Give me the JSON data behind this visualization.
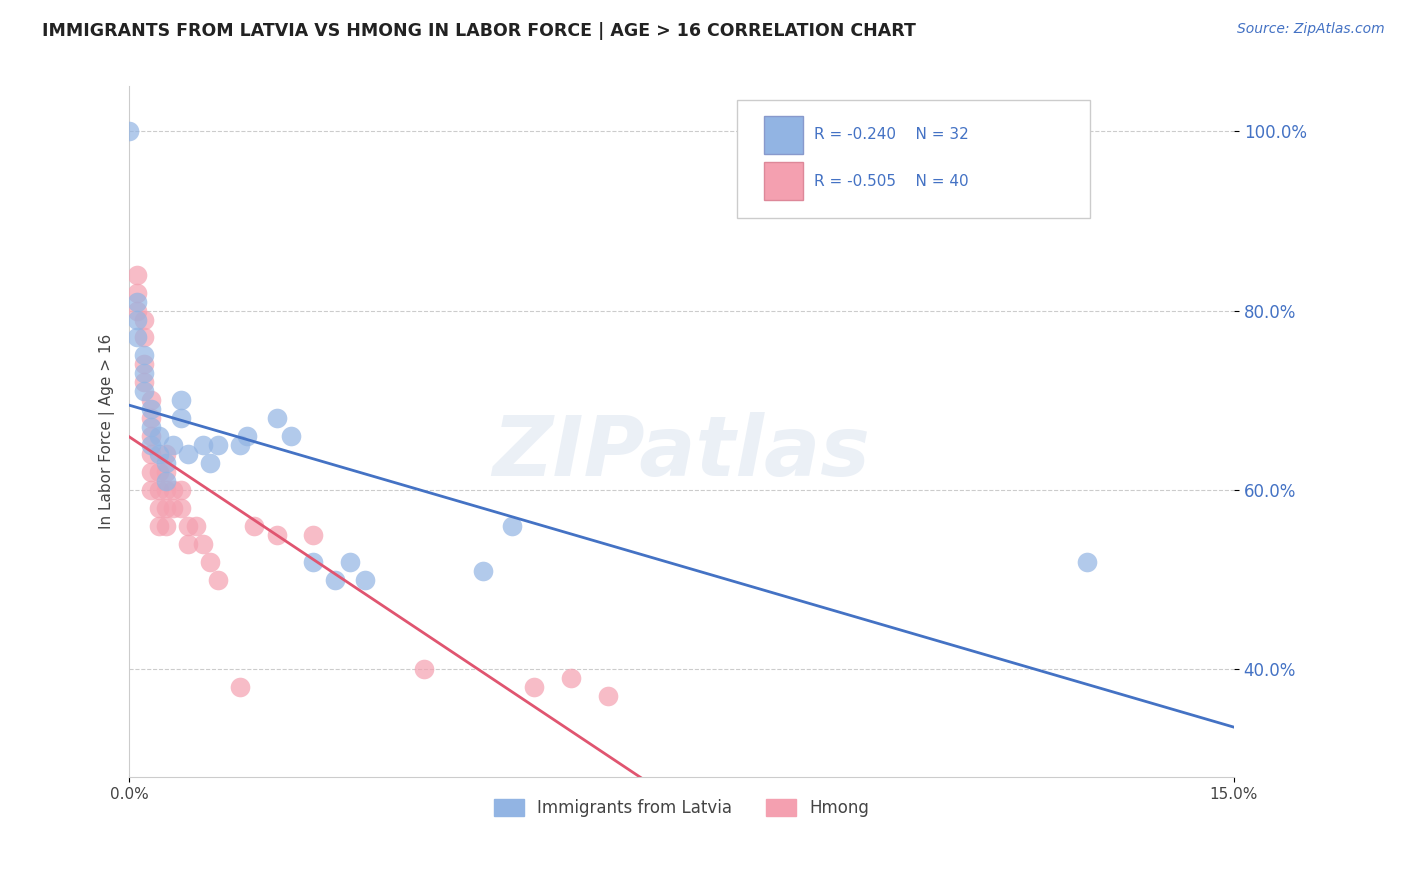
{
  "title": "IMMIGRANTS FROM LATVIA VS HMONG IN LABOR FORCE | AGE > 16 CORRELATION CHART",
  "source_text": "Source: ZipAtlas.com",
  "ylabel": "In Labor Force | Age > 16",
  "xlim": [
    0.0,
    0.15
  ],
  "ylim": [
    0.28,
    1.05
  ],
  "ytick_positions": [
    0.4,
    0.6,
    0.8,
    1.0
  ],
  "ytick_labels": [
    "40.0%",
    "60.0%",
    "80.0%",
    "100.0%"
  ],
  "grid_color": "#cccccc",
  "background_color": "#ffffff",
  "latvia_R": "-0.240",
  "latvia_N": "32",
  "hmong_R": "-0.505",
  "hmong_N": "40",
  "latvia_color": "#92b4e3",
  "hmong_color": "#f4a0b0",
  "latvia_line_color": "#4472c4",
  "hmong_line_color": "#e05570",
  "watermark": "ZIPatlas",
  "latvia_x": [
    0.001,
    0.001,
    0.001,
    0.002,
    0.002,
    0.002,
    0.003,
    0.003,
    0.003,
    0.004,
    0.004,
    0.005,
    0.005,
    0.006,
    0.007,
    0.007,
    0.008,
    0.01,
    0.011,
    0.012,
    0.015,
    0.016,
    0.02,
    0.022,
    0.025,
    0.028,
    0.03,
    0.032,
    0.048,
    0.052,
    0.13,
    0.0
  ],
  "latvia_y": [
    0.81,
    0.79,
    0.77,
    0.75,
    0.73,
    0.71,
    0.69,
    0.67,
    0.65,
    0.66,
    0.64,
    0.63,
    0.61,
    0.65,
    0.7,
    0.68,
    0.64,
    0.65,
    0.63,
    0.65,
    0.65,
    0.66,
    0.68,
    0.66,
    0.52,
    0.5,
    0.52,
    0.5,
    0.51,
    0.56,
    0.52,
    1.0
  ],
  "hmong_x": [
    0.001,
    0.001,
    0.001,
    0.002,
    0.002,
    0.002,
    0.002,
    0.003,
    0.003,
    0.003,
    0.003,
    0.003,
    0.003,
    0.004,
    0.004,
    0.004,
    0.004,
    0.005,
    0.005,
    0.005,
    0.005,
    0.005,
    0.006,
    0.006,
    0.007,
    0.007,
    0.008,
    0.008,
    0.009,
    0.01,
    0.011,
    0.012,
    0.015,
    0.017,
    0.02,
    0.025,
    0.04,
    0.055,
    0.06,
    0.065
  ],
  "hmong_y": [
    0.84,
    0.82,
    0.8,
    0.79,
    0.77,
    0.74,
    0.72,
    0.7,
    0.68,
    0.66,
    0.64,
    0.62,
    0.6,
    0.62,
    0.6,
    0.58,
    0.56,
    0.56,
    0.58,
    0.6,
    0.62,
    0.64,
    0.6,
    0.58,
    0.6,
    0.58,
    0.56,
    0.54,
    0.56,
    0.54,
    0.52,
    0.5,
    0.38,
    0.56,
    0.55,
    0.55,
    0.4,
    0.38,
    0.39,
    0.37
  ]
}
